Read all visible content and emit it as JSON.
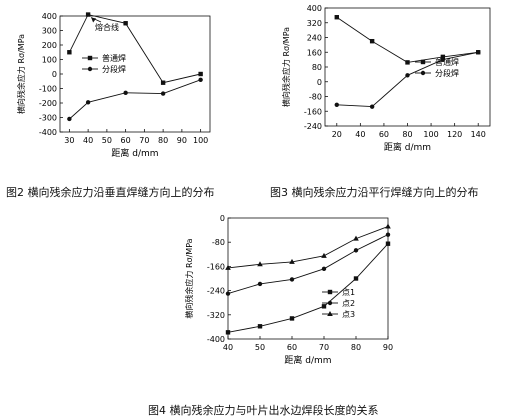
{
  "captions": {
    "fig2": "图2 横向残余应力沿垂直焊缝方向上的分布",
    "fig3": "图3 横向残余应力沿平行焊缝方向上的分布",
    "fig4": "图4 横向残余应力与叶片出水边焊段长度的关系"
  },
  "chart_data": [
    {
      "id": "fig2",
      "type": "line",
      "ylabel": "横向残余应力 Rσ/MPa",
      "xlabel": "距离 d/mm",
      "xlim": [
        25,
        105
      ],
      "ylim": [
        -400,
        400
      ],
      "xticks": [
        30,
        40,
        50,
        60,
        70,
        80,
        90,
        100
      ],
      "yticks": [
        -400,
        -300,
        -200,
        -100,
        0,
        100,
        200,
        300,
        400
      ],
      "annotation": "熔合线",
      "legend_position": "top-left",
      "series": [
        {
          "name": "普通焊",
          "marker": "square",
          "x": [
            30,
            40,
            60,
            80,
            100
          ],
          "values": [
            150,
            410,
            350,
            -60,
            0
          ]
        },
        {
          "name": "分段焊",
          "marker": "dot",
          "x": [
            30,
            40,
            60,
            80,
            100
          ],
          "values": [
            -310,
            -195,
            -130,
            -135,
            -40
          ]
        }
      ]
    },
    {
      "id": "fig3",
      "type": "line",
      "ylabel": "横向残余应力 Rσ/MPa",
      "xlabel": "距离 d/mm",
      "xlim": [
        10,
        150
      ],
      "ylim": [
        -240,
        400
      ],
      "xticks": [
        20,
        40,
        60,
        80,
        100,
        120,
        140
      ],
      "yticks": [
        -240,
        -160,
        -80,
        0,
        80,
        160,
        240,
        320,
        400
      ],
      "legend_position": "center-right",
      "series": [
        {
          "name": "普通焊",
          "marker": "square",
          "x": [
            20,
            50,
            80,
            110,
            140
          ],
          "values": [
            350,
            220,
            105,
            135,
            160
          ]
        },
        {
          "name": "分段焊",
          "marker": "dot",
          "x": [
            20,
            50,
            80,
            110,
            140
          ],
          "values": [
            -125,
            -135,
            35,
            120,
            160
          ]
        }
      ]
    },
    {
      "id": "fig4",
      "type": "line",
      "ylabel": "横向残余应力 Rσ/MPa",
      "xlabel": "距离 d/mm",
      "xlim": [
        40,
        90
      ],
      "ylim": [
        -400,
        0
      ],
      "xticks": [
        40,
        50,
        60,
        70,
        80,
        90
      ],
      "yticks": [
        -400,
        -320,
        -240,
        -160,
        -80,
        0
      ],
      "legend_position": "bottom-right",
      "series": [
        {
          "name": "点1",
          "marker": "square",
          "x": [
            40,
            50,
            60,
            70,
            80,
            90
          ],
          "values": [
            -378,
            -358,
            -332,
            -292,
            -200,
            -85
          ]
        },
        {
          "name": "点2",
          "marker": "dot",
          "x": [
            40,
            50,
            60,
            70,
            80,
            90
          ],
          "values": [
            -250,
            -218,
            -203,
            -168,
            -107,
            -55
          ]
        },
        {
          "name": "点3",
          "marker": "triangle",
          "x": [
            40,
            50,
            60,
            70,
            80,
            90
          ],
          "values": [
            -165,
            -153,
            -145,
            -125,
            -68,
            -28
          ]
        }
      ]
    }
  ]
}
